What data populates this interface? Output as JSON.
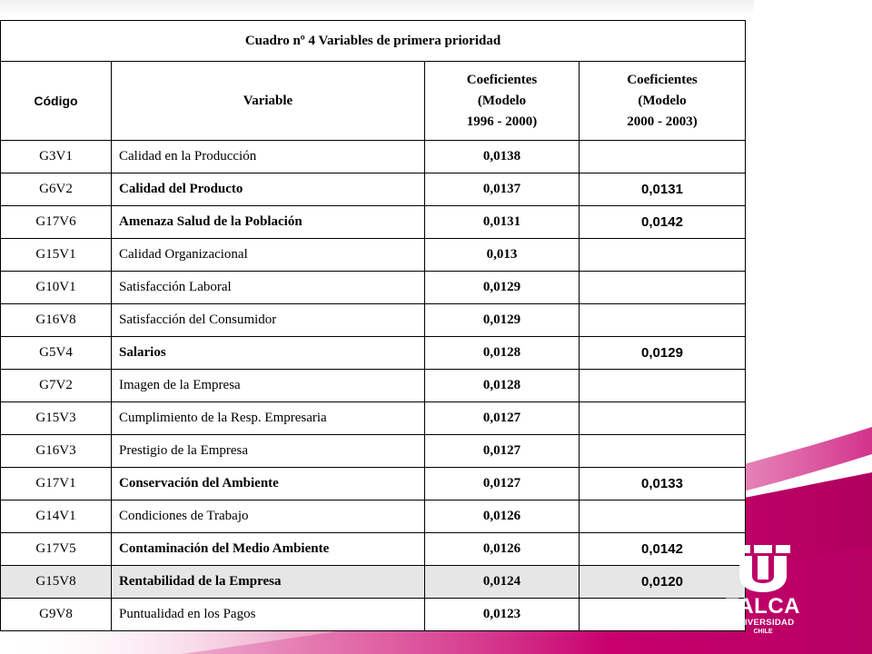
{
  "table": {
    "title": "Cuadro nº 4 Variables de primera prioridad",
    "headers": {
      "code": "Código",
      "variable": "Variable",
      "coef1_line1": "Coeficientes",
      "coef1_line2": "(Modelo",
      "coef1_line3": "1996 - 2000)",
      "coef2_line1": "Coeficientes",
      "coef2_line2": "(Modelo",
      "coef2_line3": "2000 - 2003)"
    },
    "rows": [
      {
        "code": "G3V1",
        "variable": "Calidad en la Producción",
        "coef1": "0,0138"
      },
      {
        "code": "G6V2",
        "variable": "Calidad del Producto",
        "coef1": "0,0137"
      },
      {
        "code": "G17V6",
        "variable": "Amenaza Salud de la Población",
        "coef1": "0,0131"
      },
      {
        "code": "G15V1",
        "variable": "Calidad Organizacional",
        "coef1": "0,013"
      },
      {
        "code": "G10V1",
        "variable": "Satisfacción Laboral",
        "coef1": "0,0129"
      },
      {
        "code": "G16V8",
        "variable": "Satisfacción del Consumidor",
        "coef1": "0,0129"
      },
      {
        "code": "G5V4",
        "variable": "Salarios",
        "coef1": "0,0128"
      },
      {
        "code": "G7V2",
        "variable": "Imagen de la Empresa",
        "coef1": "0,0128"
      },
      {
        "code": "G15V3",
        "variable": "Cumplimiento de la Resp. Empresaria",
        "coef1": "0,0127"
      },
      {
        "code": "G16V3",
        "variable": "Prestigio de la Empresa",
        "coef1": "0,0127"
      },
      {
        "code": "G17V1",
        "variable": "Conservación del Ambiente",
        "coef1": "0,0127"
      },
      {
        "code": "G14V1",
        "variable": "Condiciones de Trabajo",
        "coef1": "0,0126"
      },
      {
        "code": "G17V5",
        "variable": "Contaminación del Medio Ambiente",
        "coef1": "0,0126"
      },
      {
        "code": "G15V8",
        "variable": "Rentabilidad de la Empresa",
        "coef1": "0,0124"
      },
      {
        "code": "G9V8",
        "variable": "Puntualidad en los Pagos",
        "coef1": "0,0123"
      }
    ],
    "coef2": {
      "G6V2": "0,0131",
      "G17V6": "0,0142",
      "G5V4": "0,0129",
      "G17V1": "0,0133",
      "G17V5": "0,0142",
      "G15V8": "0,0120"
    }
  },
  "logo": {
    "name": "TALCA",
    "subtitle": "UNIVERSIDAD",
    "country": "CHILE"
  },
  "colors": {
    "swoosh": "#c8006e",
    "swoosh_light": "#e05a9a",
    "border": "#000000"
  }
}
